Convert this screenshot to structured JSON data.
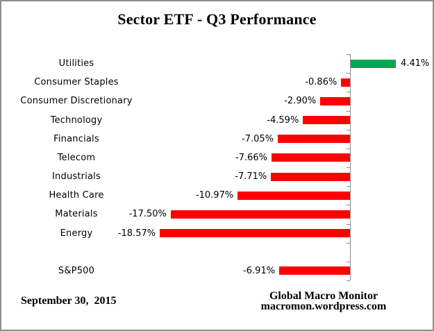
{
  "title": "Sector ETF - Q3 Performance",
  "footer": {
    "date": "September 30,  2015",
    "brand_line1": "Global Macro Monitor",
    "brand_line2": "macromon.wordpress.com"
  },
  "chart_data": {
    "type": "bar",
    "orientation": "horizontal",
    "title": "Sector ETF - Q3 Performance",
    "value_unit": "percent",
    "xlim": [
      -20,
      8
    ],
    "grid": false,
    "legend": false,
    "colors": {
      "positive": "#00A651",
      "negative": "#FF0000",
      "axis": "#8c8c8c",
      "frame_border": "#8f8f8f",
      "text": "#000000"
    },
    "items": [
      {
        "category": "Utilities",
        "value": 4.41,
        "label": "4.41%"
      },
      {
        "category": "Consumer Staples",
        "value": -0.86,
        "label": "-0.86%"
      },
      {
        "category": "Consumer Discretionary",
        "value": -2.9,
        "label": "-2.90%"
      },
      {
        "category": "Technology",
        "value": -4.59,
        "label": "-4.59%"
      },
      {
        "category": "Financials",
        "value": -7.05,
        "label": "-7.05%"
      },
      {
        "category": "Telecom",
        "value": -7.66,
        "label": "-7.66%"
      },
      {
        "category": "Industrials",
        "value": -7.71,
        "label": "-7.71%"
      },
      {
        "category": "Health Care",
        "value": -10.97,
        "label": "-10.97%"
      },
      {
        "category": "Materials",
        "value": -17.5,
        "label": "-17.50%"
      },
      {
        "category": "Energy",
        "value": -18.57,
        "label": "-18.57%"
      },
      {
        "category": "S&P500",
        "value": -6.91,
        "label": "-6.91%",
        "spacer_before": true
      }
    ]
  }
}
